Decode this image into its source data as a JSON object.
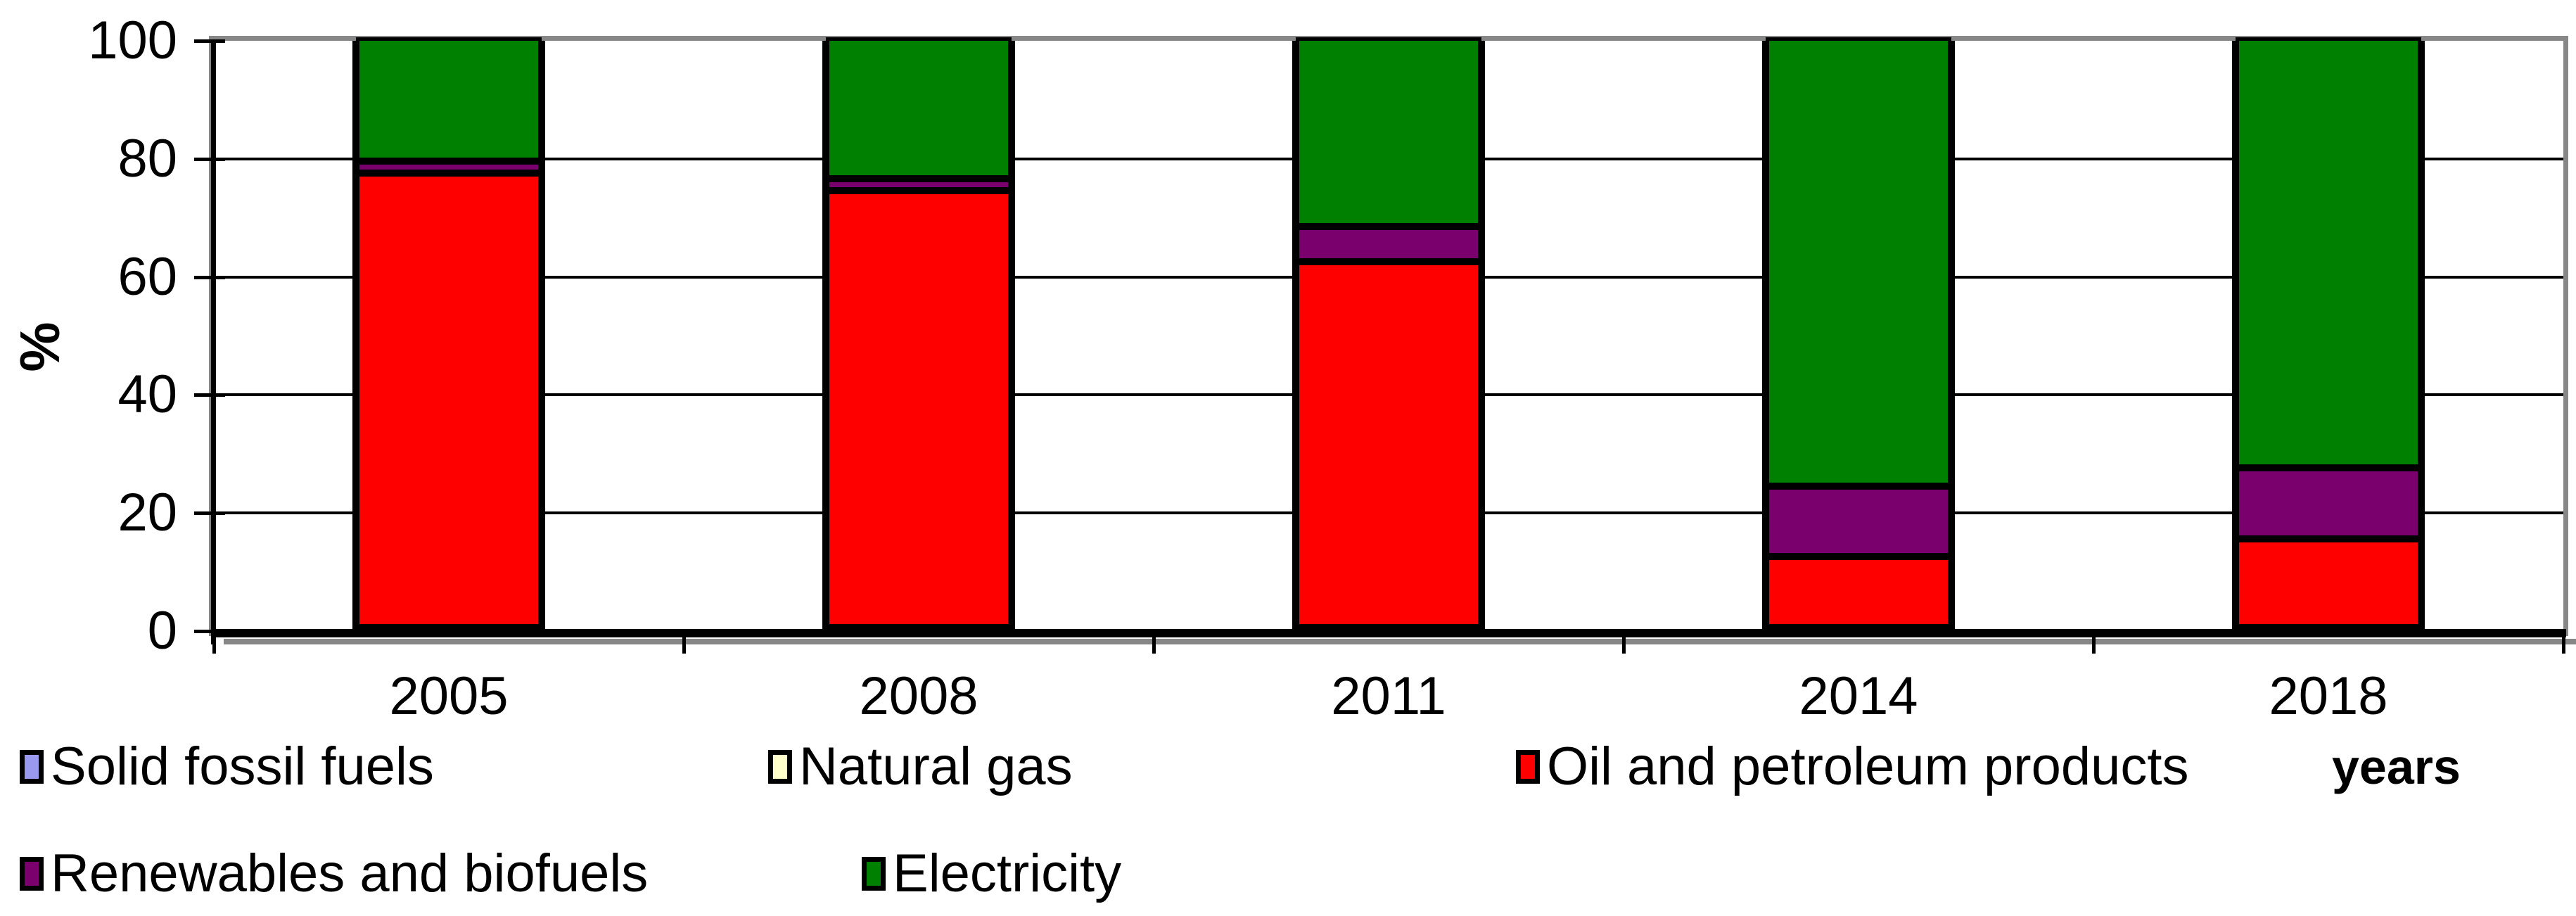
{
  "chart_data": {
    "type": "bar",
    "stacked": true,
    "title": "",
    "xlabel": "years",
    "ylabel": "%",
    "ylim": [
      0,
      100
    ],
    "yticks": [
      0,
      20,
      40,
      60,
      80,
      100
    ],
    "grid": true,
    "legend_position": "bottom",
    "categories": [
      "2005",
      "2008",
      "2011",
      "2014",
      "2018"
    ],
    "series": [
      {
        "name": "Solid fossil fuels",
        "color": "#9999F0",
        "values": [
          0,
          0,
          0,
          0,
          0
        ]
      },
      {
        "name": "Natural gas",
        "color": "#FFFFCC",
        "values": [
          0,
          0,
          0,
          0,
          0
        ]
      },
      {
        "name": "Oil and petroleum products",
        "color": "#FF0000",
        "values": [
          77,
          74,
          62,
          12,
          15
        ]
      },
      {
        "name": "Renewables and biofuels",
        "color": "#7A006E",
        "values": [
          2,
          2,
          6,
          12,
          12
        ]
      },
      {
        "name": "Electricity",
        "color": "#008000",
        "values": [
          21,
          24,
          32,
          76,
          73
        ]
      }
    ]
  },
  "style": {
    "gridline_color": "#000000",
    "frame_color": "#878787",
    "bar_border_color": "#000000",
    "background": "#FFFFFF"
  }
}
